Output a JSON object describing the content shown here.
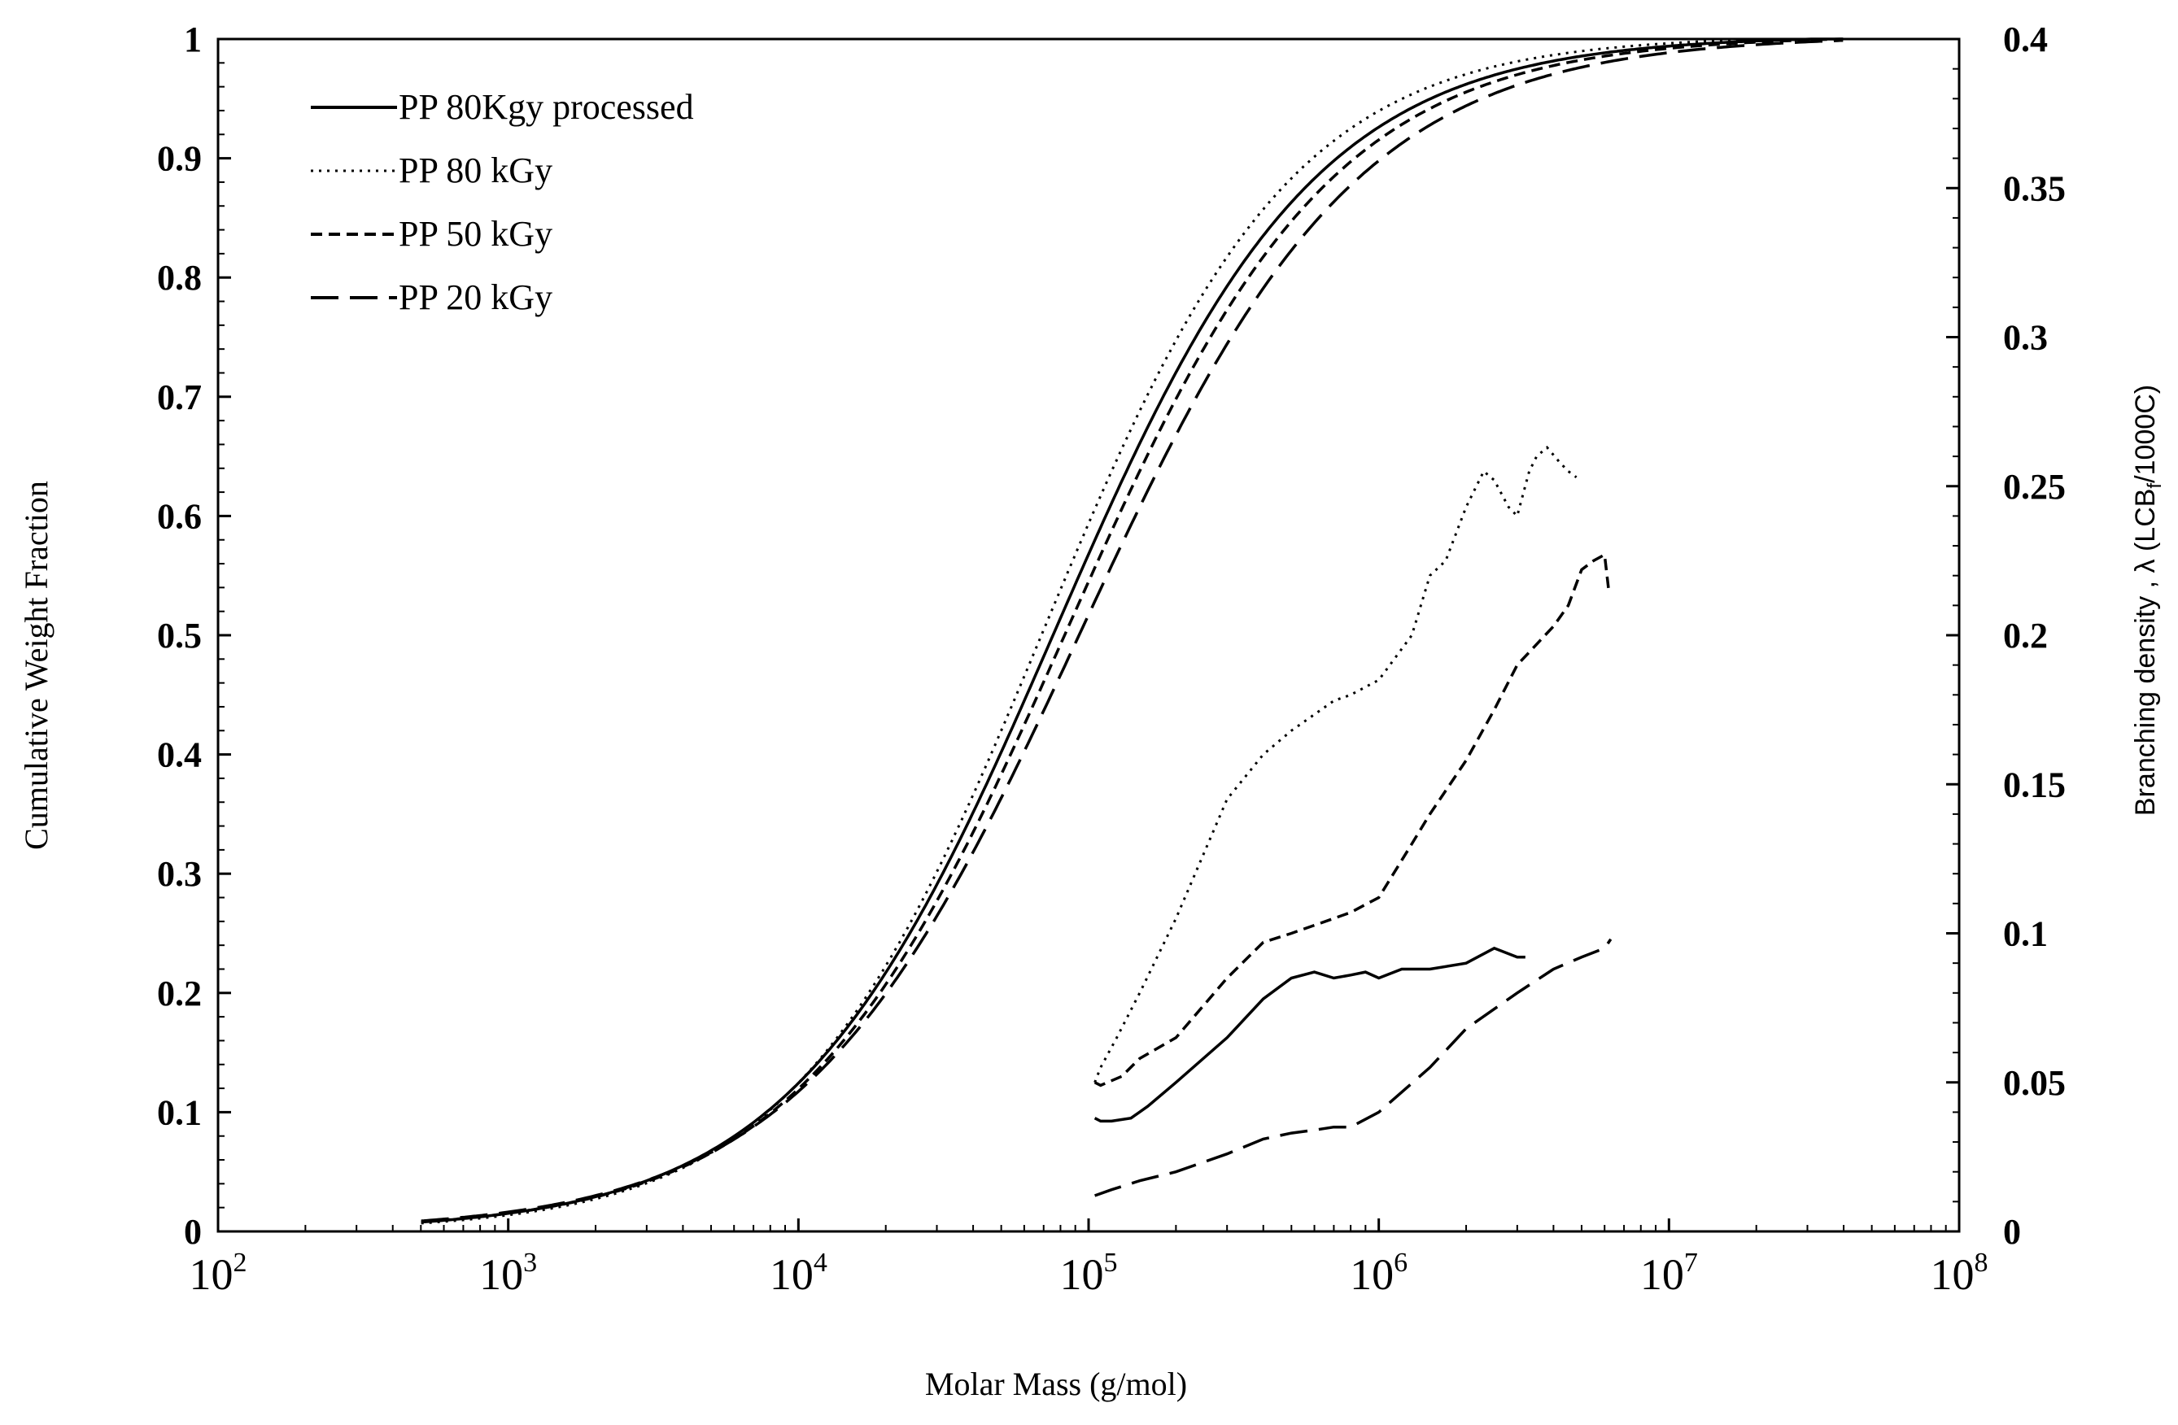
{
  "chart_data": {
    "type": "line",
    "title": "",
    "xlabel": "Molar Mass (g/mol)",
    "ylabel": "Cumulative  Weight Fraction",
    "y2label": "Branching density , λ (LCB",
    "y2label_sub": "f",
    "y2label_tail": "/1000C)",
    "x_scale": "log",
    "xlim": [
      100,
      100000000
    ],
    "ylim": [
      0,
      1
    ],
    "y2lim": [
      0,
      0.4
    ],
    "x_ticks": [
      {
        "base": "10",
        "exp": "2",
        "value": 100
      },
      {
        "base": "10",
        "exp": "3",
        "value": 1000
      },
      {
        "base": "10",
        "exp": "4",
        "value": 10000
      },
      {
        "base": "10",
        "exp": "5",
        "value": 100000
      },
      {
        "base": "10",
        "exp": "6",
        "value": 1000000
      },
      {
        "base": "10",
        "exp": "7",
        "value": 10000000
      },
      {
        "base": "10",
        "exp": "8",
        "value": 100000000
      }
    ],
    "y_ticks": [
      "0",
      "0.1",
      "0.2",
      "0.3",
      "0.4",
      "0.5",
      "0.6",
      "0.7",
      "0.8",
      "0.9",
      "1"
    ],
    "y2_ticks": [
      "0",
      "0.05",
      "0.1",
      "0.15",
      "0.2",
      "0.25",
      "0.3",
      "0.35",
      "0.4"
    ],
    "legend_position": "top-left",
    "series": [
      {
        "name": "PP 80Kgy processed",
        "style": "solid",
        "axis": "left",
        "color": "#000000",
        "mid_logM": 4.88,
        "width": 0.45
      },
      {
        "name": "PP 80 kGy",
        "style": "dotted",
        "axis": "left",
        "color": "#000000",
        "mid_logM": 4.84,
        "width": 0.43
      },
      {
        "name": "PP 50 kGy",
        "style": "dashed",
        "axis": "left",
        "color": "#000000",
        "mid_logM": 4.92,
        "width": 0.46
      },
      {
        "name": "PP 20 kGy",
        "style": "longdash",
        "axis": "left",
        "color": "#000000",
        "mid_logM": 4.97,
        "width": 0.48
      }
    ],
    "branching_series": [
      {
        "name": "PP 80 kGy",
        "style": "dotted",
        "axis": "right",
        "x": [
          105000,
          110000,
          125000,
          150000,
          200000,
          300000,
          400000,
          500000,
          700000,
          800000,
          1000000,
          1300000,
          1500000,
          1700000,
          2000000,
          2300000,
          2500000,
          2800000,
          3000000,
          3300000,
          3500000,
          3800000,
          4200000,
          4500000,
          4800000
        ],
        "y": [
          0.05,
          0.055,
          0.065,
          0.08,
          0.105,
          0.145,
          0.16,
          0.168,
          0.178,
          0.18,
          0.185,
          0.2,
          0.22,
          0.225,
          0.243,
          0.255,
          0.252,
          0.243,
          0.24,
          0.255,
          0.26,
          0.263,
          0.258,
          0.255,
          0.253
        ]
      },
      {
        "name": "PP 50 kGy",
        "style": "dashed",
        "axis": "right",
        "x": [
          105000,
          110000,
          130000,
          150000,
          200000,
          300000,
          400000,
          500000,
          700000,
          800000,
          1000000,
          1300000,
          1500000,
          2000000,
          2500000,
          3000000,
          4000000,
          4500000,
          5000000,
          5500000,
          6000000,
          6200000
        ],
        "y": [
          0.05,
          0.049,
          0.052,
          0.058,
          0.065,
          0.085,
          0.097,
          0.1,
          0.105,
          0.107,
          0.112,
          0.13,
          0.14,
          0.158,
          0.175,
          0.19,
          0.203,
          0.21,
          0.222,
          0.225,
          0.227,
          0.215
        ]
      },
      {
        "name": "PP 80Kgy processed",
        "style": "solid",
        "axis": "right",
        "x": [
          105000,
          110000,
          120000,
          140000,
          160000,
          200000,
          300000,
          400000,
          500000,
          600000,
          700000,
          800000,
          900000,
          1000000,
          1200000,
          1500000,
          2000000,
          2500000,
          3000000,
          3200000
        ],
        "y": [
          0.038,
          0.037,
          0.037,
          0.038,
          0.042,
          0.05,
          0.065,
          0.078,
          0.085,
          0.087,
          0.085,
          0.086,
          0.087,
          0.085,
          0.088,
          0.088,
          0.09,
          0.095,
          0.092,
          0.092
        ]
      },
      {
        "name": "PP 20 kGy",
        "style": "longdash",
        "axis": "right",
        "x": [
          105000,
          120000,
          150000,
          200000,
          300000,
          400000,
          500000,
          600000,
          700000,
          800000,
          1000000,
          1500000,
          2000000,
          3000000,
          4000000,
          5000000,
          6000000,
          6300000
        ],
        "y": [
          0.012,
          0.014,
          0.017,
          0.02,
          0.026,
          0.031,
          0.033,
          0.034,
          0.035,
          0.035,
          0.04,
          0.055,
          0.068,
          0.08,
          0.088,
          0.092,
          0.095,
          0.098
        ]
      }
    ]
  }
}
